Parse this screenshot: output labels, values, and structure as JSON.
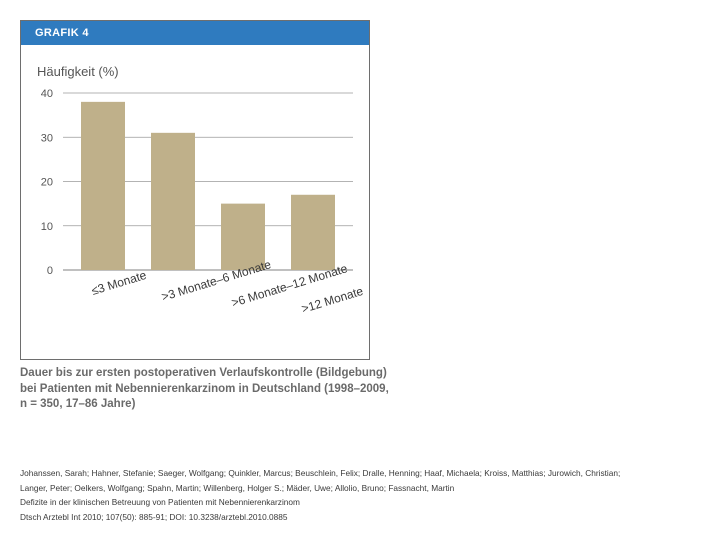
{
  "figure": {
    "header": "GRAFIK 4"
  },
  "chart_data": {
    "type": "bar",
    "ylabel": "Häufigkeit (%)",
    "xlabel": "",
    "categories": [
      "≤3 Monate",
      ">3 Monate–6 Monate",
      ">6 Monate–12 Monate",
      ">12 Monate"
    ],
    "values": [
      38,
      31,
      15,
      17
    ],
    "ylim": [
      0,
      40
    ],
    "yticks": [
      0,
      10,
      20,
      30,
      40
    ],
    "grid": true,
    "bar_color": "#bfb08a",
    "grid_color": "#9a9a9a"
  },
  "caption": {
    "line1": "Dauer bis zur ersten postoperativen Verlaufskontrolle (Bildgebung)",
    "line2": "bei Patienten mit Nebennierenkarzinom in Deutschland (1998–2009,",
    "line3": "n = 350, 17–86 Jahre)"
  },
  "citation": {
    "authors_line1": "Johanssen, Sarah; Hahner, Stefanie; Saeger, Wolfgang; Quinkler, Marcus; Beuschlein, Felix; Dralle, Henning; Haaf, Michaela; Kroiss, Matthias; Jurowich, Christian;",
    "authors_line2": "Langer, Peter; Oelkers, Wolfgang; Spahn, Martin; Willenberg, Holger S.; Mäder, Uwe; Allolio, Bruno; Fassnacht, Martin",
    "title": "Defizite in der klinischen Betreuung von Patienten mit Nebennierenkarzinom",
    "source": "Dtsch Arztebl Int 2010; 107(50): 885-91; DOI: 10.3238/arztebl.2010.0885"
  }
}
